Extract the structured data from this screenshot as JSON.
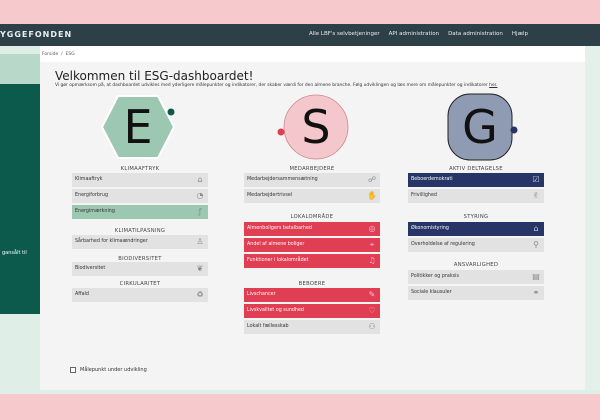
{
  "nav": {
    "logo": "YGGEFONDEN",
    "links": [
      "Alle LBF's selvbetjeninger",
      "API administration",
      "Data administration",
      "Hjælp"
    ]
  },
  "left_panel_text": "gansålt til",
  "breadcrumb": [
    "Forside",
    "/",
    "ESG"
  ],
  "title": "Velkommen til ESG-dashboardet!",
  "subtitle": "Vi gør opmærksom på, at dashboardet udvikles med yderligere målepunkter og indikatorer, der skaber værdi for den almene branche. Følg udviklingen og læs mere om målepunkter og indikatorer ",
  "subtitle_link": "her.",
  "colors": {
    "e": "#9cc8b2",
    "s": "#e03e52",
    "g": "#263566",
    "nav": "#2d4047"
  },
  "columns": [
    {
      "letter": "E",
      "groups": [
        {
          "title": "KLIMAAFTRYK",
          "items": [
            {
              "label": "Klimaaftryk",
              "icon": "house-icon",
              "state": "dev"
            },
            {
              "label": "Energiforbrug",
              "icon": "gauge-icon",
              "state": "dev"
            },
            {
              "label": "Energimærkning",
              "icon": "energy-label-icon",
              "state": "active"
            }
          ]
        },
        {
          "title": "KLIMATILPASNING",
          "items": [
            {
              "label": "Sårbarhed for klimaændringer",
              "icon": "person-icon",
              "state": "dev"
            }
          ]
        },
        {
          "title": "BIODIVERSITET",
          "items": [
            {
              "label": "Biodiversitet",
              "icon": "leaf-icon",
              "state": "dev"
            }
          ]
        },
        {
          "title": "CIRKULARITET",
          "items": [
            {
              "label": "Affald",
              "icon": "bin-icon",
              "state": "dev"
            }
          ]
        }
      ]
    },
    {
      "letter": "S",
      "groups": [
        {
          "title": "MEDARBEJDERE",
          "items": [
            {
              "label": "Medarbejdersammensætning",
              "icon": "network-icon",
              "state": "dev"
            },
            {
              "label": "Medarbejdertrivsel",
              "icon": "hand-icon",
              "state": "dev"
            }
          ]
        },
        {
          "title": "LOKALOMRÅDE",
          "items": [
            {
              "label": "Almenboligers betalbarhed",
              "icon": "coins-icon",
              "state": "active"
            },
            {
              "label": "Andel af almene boliger",
              "icon": "location-icon",
              "state": "active"
            },
            {
              "label": "Funktioner i lokalområdet",
              "icon": "music-icon",
              "state": "active"
            }
          ]
        },
        {
          "title": "BEBOERE",
          "items": [
            {
              "label": "Livschancer",
              "icon": "chart-icon",
              "state": "active"
            },
            {
              "label": "Livskvalitet og sundhed",
              "icon": "heart-hands-icon",
              "state": "active"
            },
            {
              "label": "Lokalt fællesskab",
              "icon": "people-icon",
              "state": "dev"
            }
          ]
        }
      ]
    },
    {
      "letter": "G",
      "groups": [
        {
          "title": "AKTIV DELTAGELSE",
          "items": [
            {
              "label": "Beboerdemokrati",
              "icon": "vote-icon",
              "state": "active"
            },
            {
              "label": "Frivillighed",
              "icon": "volunteer-icon",
              "state": "dev"
            }
          ]
        },
        {
          "title": "STYRING",
          "items": [
            {
              "label": "Økonomistyring",
              "icon": "finance-icon",
              "state": "active"
            },
            {
              "label": "Overholdelse af regulering",
              "icon": "magnifier-icon",
              "state": "dev"
            }
          ]
        },
        {
          "title": "ANSVARLIGHED",
          "items": [
            {
              "label": "Politikker og praksis",
              "icon": "document-icon",
              "state": "dev"
            },
            {
              "label": "Sociale klausuler",
              "icon": "handshake-icon",
              "state": "dev"
            }
          ]
        }
      ]
    }
  ],
  "legend": "Målepunkt under udvikling"
}
